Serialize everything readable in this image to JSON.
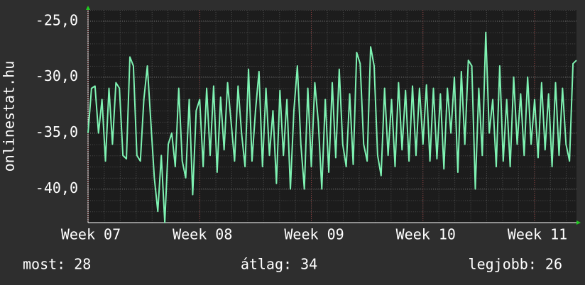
{
  "chart_data": {
    "type": "line",
    "ylabel": "onlinestat.hu",
    "categories": [
      "Week 07",
      null,
      null,
      null,
      null,
      null,
      null,
      null,
      null,
      null,
      null,
      null,
      null,
      null,
      null,
      null,
      null,
      null,
      null,
      null,
      null,
      null,
      null,
      null,
      null,
      null,
      null,
      null,
      null,
      null,
      null,
      null,
      "Week 08",
      null,
      null,
      null,
      null,
      null,
      null,
      null,
      null,
      null,
      null,
      null,
      null,
      null,
      null,
      null,
      null,
      null,
      null,
      null,
      null,
      null,
      null,
      null,
      null,
      null,
      null,
      null,
      null,
      null,
      null,
      null,
      "Week 09",
      null,
      null,
      null,
      null,
      null,
      null,
      null,
      null,
      null,
      null,
      null,
      null,
      null,
      null,
      null,
      null,
      null,
      null,
      null,
      null,
      null,
      null,
      null,
      null,
      null,
      null,
      null,
      null,
      null,
      null,
      null,
      "Week 10",
      null,
      null,
      null,
      null,
      null,
      null,
      null,
      null,
      null,
      null,
      null,
      null,
      null,
      null,
      null,
      null,
      null,
      null,
      null,
      null,
      null,
      null,
      null,
      null,
      null,
      null,
      null,
      null,
      null,
      null,
      null,
      "Week 11",
      null,
      null,
      null,
      null,
      null,
      null,
      null,
      null,
      null,
      null,
      null,
      null
    ],
    "values": [
      -35,
      -31,
      -30.8,
      -35,
      -32,
      -37.5,
      -31,
      -36,
      -30.5,
      -31,
      -37,
      -37.3,
      -28.2,
      -29,
      -37,
      -37.5,
      -32,
      -29,
      -34,
      -39,
      -42,
      -37,
      -43,
      -36,
      -35,
      -38,
      -31,
      -37.5,
      -39,
      -32,
      -40.5,
      -33,
      -32,
      -38,
      -31,
      -37,
      -30.8,
      -38.5,
      -31.8,
      -36.5,
      -30.5,
      -34,
      -37.5,
      -30.8,
      -35,
      -38,
      -29.3,
      -37.5,
      -33,
      -29.5,
      -38,
      -31,
      -37,
      -33,
      -39.5,
      -31.2,
      -37,
      -32,
      -40,
      -33,
      -29,
      -36,
      -40,
      -31,
      -38,
      -30.5,
      -34,
      -40,
      -32,
      -38.5,
      -30.5,
      -37.2,
      -29.3,
      -36,
      -38,
      -31.5,
      -37.8,
      -27.8,
      -28.8,
      -36,
      -37.5,
      -27.3,
      -29,
      -37,
      -38.8,
      -31,
      -37,
      -32,
      -38,
      -30.5,
      -36.5,
      -31.2,
      -37.5,
      -30.8,
      -37,
      -31,
      -36,
      -30.7,
      -37.5,
      -31,
      -37.3,
      -31.5,
      -38.2,
      -31,
      -35,
      -30,
      -38.5,
      -29.5,
      -36,
      -28.5,
      -29,
      -40,
      -31,
      -37,
      -26,
      -35,
      -32,
      -38,
      -29,
      -37.5,
      -32,
      -38,
      -30,
      -36,
      -31.5,
      -37,
      -30,
      -36,
      -32,
      -37.2,
      -30.5,
      -36.5,
      -31.5,
      -38,
      -30.5,
      -37,
      -31,
      -36,
      -37.5,
      -28.8,
      -28.5
    ],
    "color": "#7ef2b2",
    "ylim": [
      -43,
      -24
    ],
    "yticks": [
      {
        "value": -25,
        "label": "-25,0"
      },
      {
        "value": -30,
        "label": "-30,0"
      },
      {
        "value": -35,
        "label": "-35,0"
      },
      {
        "value": -40,
        "label": "-40,0"
      }
    ],
    "grid": true
  },
  "footer": [
    "most: 28",
    "átlag: 34",
    "legjobb: 26"
  ]
}
